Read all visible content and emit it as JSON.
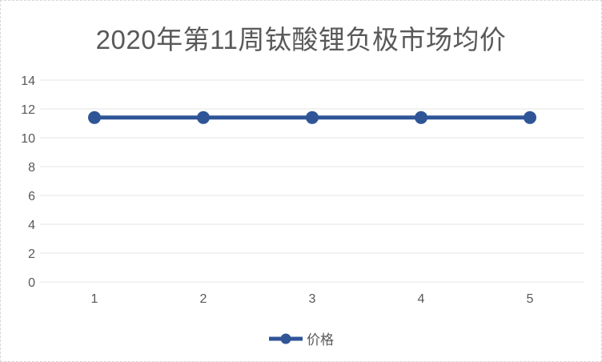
{
  "page": {
    "background": "#ffffff",
    "border_color": "#d8d8d8"
  },
  "chart_data": {
    "type": "line",
    "title": "2020年第11周钛酸锂负极市场均价",
    "categories": [
      "1",
      "2",
      "3",
      "4",
      "5"
    ],
    "series": [
      {
        "name": "价格",
        "values": [
          11.4,
          11.4,
          11.4,
          11.4,
          11.4
        ],
        "color": "#2F5597",
        "marker": "circle"
      }
    ],
    "xlabel": "",
    "ylabel": "",
    "ylim": [
      0,
      14
    ],
    "ytick_step": 2,
    "yticks": [
      0,
      2,
      4,
      6,
      8,
      10,
      12,
      14
    ],
    "grid": true,
    "gridline_color": "#e4e4e4",
    "axis_label_color": "#595959",
    "legend_position": "bottom"
  }
}
